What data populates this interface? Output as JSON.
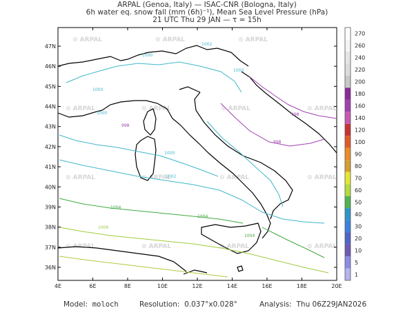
{
  "header": {
    "line1": "ARPAL (Genoa, Italy)  —  ISAC-CNR (Bologna, Italy)",
    "line2": "6h water eq. snow fall (mm (6h)⁻¹), Mean Sea Level Pressure (hPa)",
    "line3": "21 UTC Thu 29 JAN  —  τ = 15h"
  },
  "axes": {
    "lon_labels": [
      "4E",
      "6E",
      "8E",
      "10E",
      "12E",
      "14E",
      "16E",
      "18E",
      "20E"
    ],
    "lat_labels": [
      "36N",
      "37N",
      "38N",
      "39N",
      "40N",
      "41N",
      "42N",
      "43N",
      "44N",
      "45N",
      "46N",
      "47N"
    ]
  },
  "watermark": "ARPAL",
  "isobars": [
    {
      "label": "1000",
      "color": "#3fb7c8"
    },
    {
      "label": "1002",
      "color": "#3fb7c8"
    },
    {
      "label": "998",
      "color": "#a040b0"
    },
    {
      "label": "1004",
      "color": "#40a840"
    },
    {
      "label": "1006",
      "color": "#9ccc3c"
    }
  ],
  "colorbar": {
    "labels": [
      "270",
      "260",
      "240",
      "220",
      "200",
      "180",
      "160",
      "140",
      "120",
      "100",
      "90",
      "80",
      "70",
      "60",
      "50",
      "40",
      "30",
      "20",
      "10",
      "5",
      "1"
    ],
    "colors": [
      "#ffffff",
      "#f4f4f4",
      "#e6e6e6",
      "#dcdcdc",
      "#c9c9c9",
      "#8b2a9a",
      "#a040b0",
      "#c85ab4",
      "#c83232",
      "#e05a28",
      "#eb8c28",
      "#d2a02d",
      "#e6e632",
      "#b4dc3c",
      "#50b450",
      "#2d96c8",
      "#3c82dc",
      "#5064c8",
      "#6e5ab4",
      "#8c8ce6",
      "#b4b4f0"
    ]
  },
  "footer": {
    "model_label": "Model:",
    "model_value": "moloch",
    "resolution_label": "Resolution:",
    "resolution_value": "0.037°x0.028°",
    "analysis_label": "Analysis:",
    "analysis_value": "Thu 06Z29JAN2026"
  }
}
